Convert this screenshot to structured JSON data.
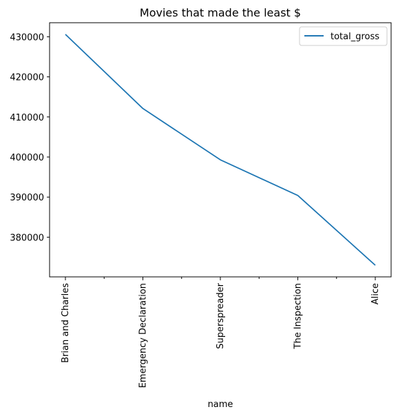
{
  "chart_data": {
    "type": "line",
    "title": "Movies that made the least $",
    "xlabel": "name",
    "ylabel": "",
    "categories": [
      "Brian and Charles",
      "Emergency Declaration",
      "Superspreader",
      "The Inspection",
      "Alice"
    ],
    "series": [
      {
        "name": "total_gross",
        "values": [
          430600,
          412100,
          399300,
          390400,
          373000
        ],
        "color": "#1f77b4"
      }
    ],
    "ylim": [
      370100,
      433500
    ],
    "yticks": [
      380000,
      390000,
      400000,
      410000,
      420000,
      430000
    ],
    "ytick_labels": [
      "380000",
      "390000",
      "400000",
      "410000",
      "420000",
      "430000"
    ],
    "grid": false,
    "legend_position": "top-right"
  }
}
